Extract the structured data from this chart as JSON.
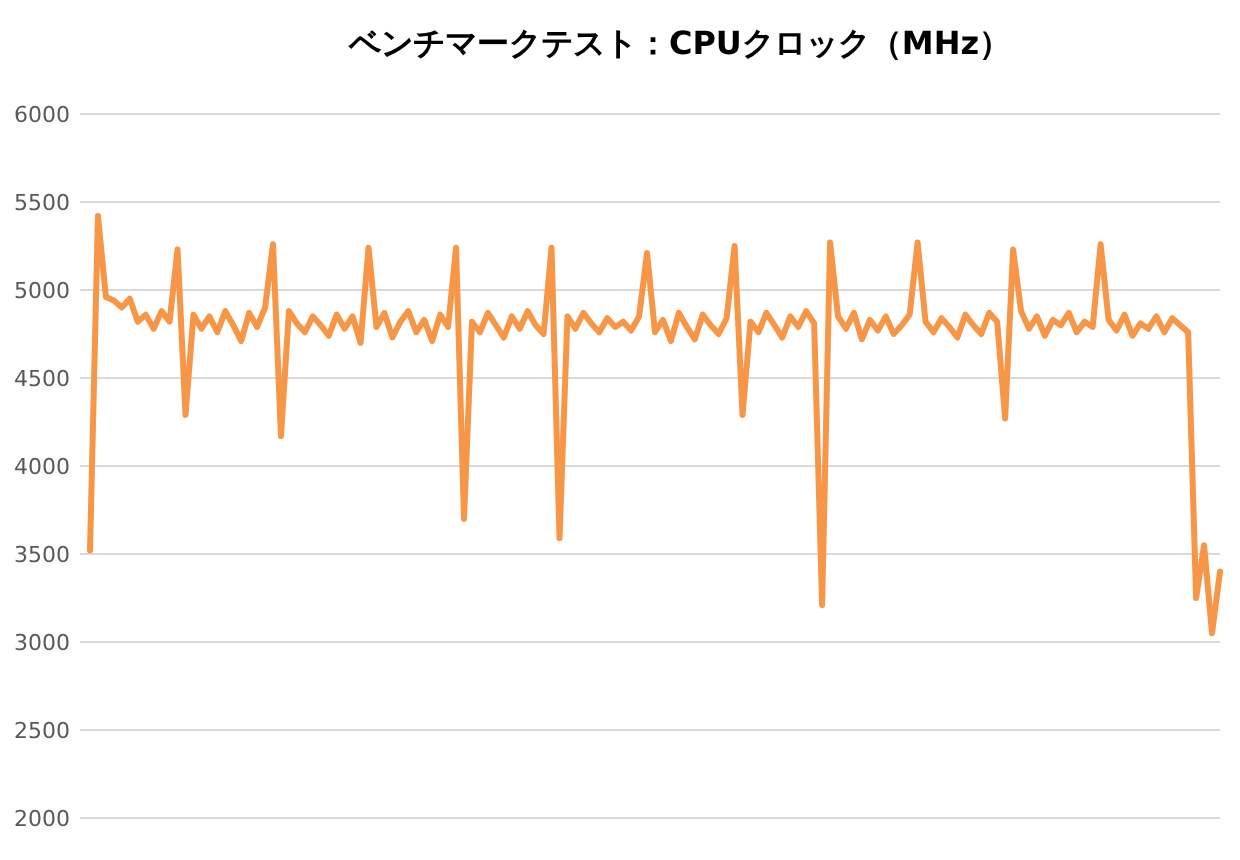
{
  "chart_data": {
    "type": "line",
    "title": "ベンチマークテスト：CPUクロック（MHz）",
    "categories": [
      null,
      null,
      null,
      null,
      null,
      null,
      null,
      null,
      null,
      null,
      null,
      null,
      null,
      null,
      null,
      null,
      null,
      null,
      null,
      null,
      null,
      null,
      null,
      null,
      null,
      null,
      null,
      null,
      null,
      null,
      null,
      null,
      null,
      null,
      null,
      null,
      null,
      null,
      null,
      null,
      null,
      null,
      null,
      null,
      null,
      null,
      null,
      null,
      null,
      null,
      null,
      null,
      null,
      null,
      null,
      null,
      null,
      null,
      null,
      null,
      null,
      null,
      null,
      null,
      null,
      null,
      null,
      null,
      null,
      null,
      null,
      null,
      null,
      null,
      null,
      null,
      null,
      null,
      null,
      null,
      null,
      null,
      null,
      null,
      null,
      null,
      null,
      null,
      null,
      null,
      null,
      null,
      null,
      null,
      null,
      null,
      null,
      null,
      null,
      null,
      null,
      null,
      null,
      null,
      null,
      null,
      null,
      null,
      null,
      null,
      null,
      null,
      null,
      null,
      null,
      null,
      null,
      null,
      null,
      null,
      null,
      null,
      null,
      null,
      null,
      null,
      null,
      null,
      null,
      null,
      null,
      null,
      null,
      null,
      null,
      null,
      null,
      null,
      null,
      null,
      null,
      null,
      null
    ],
    "values": [
      3520,
      5420,
      4960,
      4940,
      4900,
      4950,
      4820,
      4860,
      4780,
      4880,
      4820,
      5230,
      4290,
      4860,
      4780,
      4850,
      4760,
      4880,
      4800,
      4710,
      4870,
      4790,
      4900,
      5260,
      4170,
      4880,
      4810,
      4760,
      4850,
      4800,
      4740,
      4860,
      4780,
      4850,
      4700,
      5240,
      4790,
      4870,
      4730,
      4820,
      4880,
      4760,
      4830,
      4710,
      4860,
      4790,
      5240,
      3700,
      4820,
      4760,
      4870,
      4800,
      4730,
      4850,
      4780,
      4880,
      4800,
      4750,
      5240,
      3590,
      4850,
      4780,
      4870,
      4810,
      4760,
      4840,
      4790,
      4820,
      4770,
      4850,
      5210,
      4760,
      4830,
      4710,
      4870,
      4790,
      4720,
      4860,
      4800,
      4750,
      4840,
      5250,
      4290,
      4820,
      4760,
      4870,
      4800,
      4730,
      4850,
      4790,
      4880,
      4810,
      3210,
      5270,
      4850,
      4780,
      4870,
      4720,
      4830,
      4770,
      4850,
      4750,
      4800,
      4860,
      5270,
      4820,
      4760,
      4840,
      4790,
      4730,
      4860,
      4800,
      4750,
      4870,
      4820,
      4270,
      5230,
      4880,
      4780,
      4850,
      4740,
      4830,
      4800,
      4870,
      4760,
      4820,
      4790,
      5260,
      4830,
      4770,
      4860,
      4740,
      4810,
      4780,
      4850,
      4760,
      4840,
      4800,
      4760,
      3250,
      3550,
      3050,
      3400
    ],
    "color": "#f79646",
    "ylim": [
      2000,
      6000
    ],
    "yticks": [
      2000,
      2500,
      3000,
      3500,
      4000,
      4500,
      5000,
      5500,
      6000
    ],
    "grid": "y",
    "tick_labels": "y"
  }
}
